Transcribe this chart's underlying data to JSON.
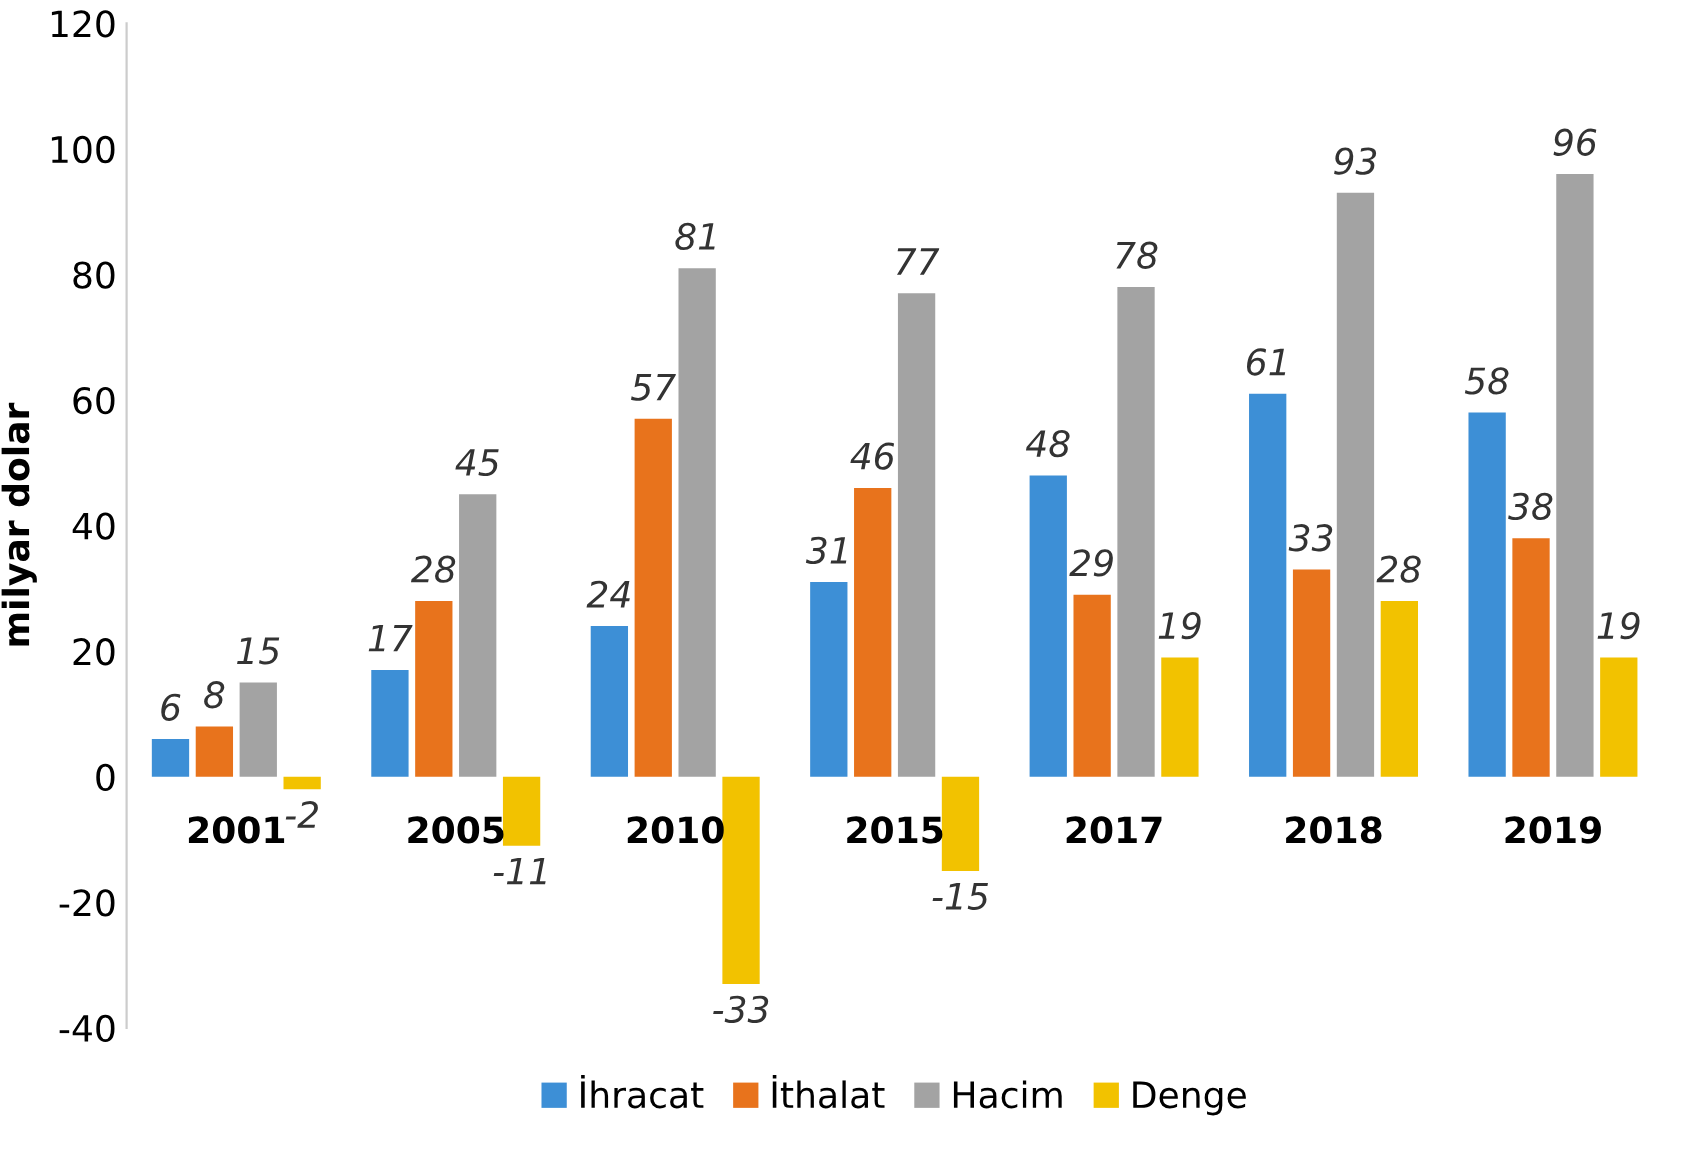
{
  "chart_data": {
    "type": "bar",
    "ylabel": "milyar dolar",
    "categories": [
      "2001",
      "2005",
      "2010",
      "2015",
      "2017",
      "2018",
      "2019"
    ],
    "series": [
      {
        "name": "İhracat",
        "color": "#3d8fd6",
        "values": [
          6,
          17,
          24,
          31,
          48,
          61,
          58
        ]
      },
      {
        "name": "İthalat",
        "color": "#e8731c",
        "values": [
          8,
          28,
          57,
          46,
          29,
          33,
          38
        ]
      },
      {
        "name": "Hacim",
        "color": "#a3a3a3",
        "values": [
          15,
          45,
          81,
          77,
          78,
          93,
          96
        ]
      },
      {
        "name": "Denge",
        "color": "#f2c200",
        "values": [
          -2,
          -11,
          -33,
          -15,
          19,
          28,
          19
        ]
      }
    ],
    "ylim": [
      -40,
      120
    ],
    "yticks": [
      -40,
      -20,
      0,
      20,
      40,
      60,
      80,
      100,
      120
    ],
    "grid": false,
    "legend": "bottom",
    "data_labels": true
  }
}
